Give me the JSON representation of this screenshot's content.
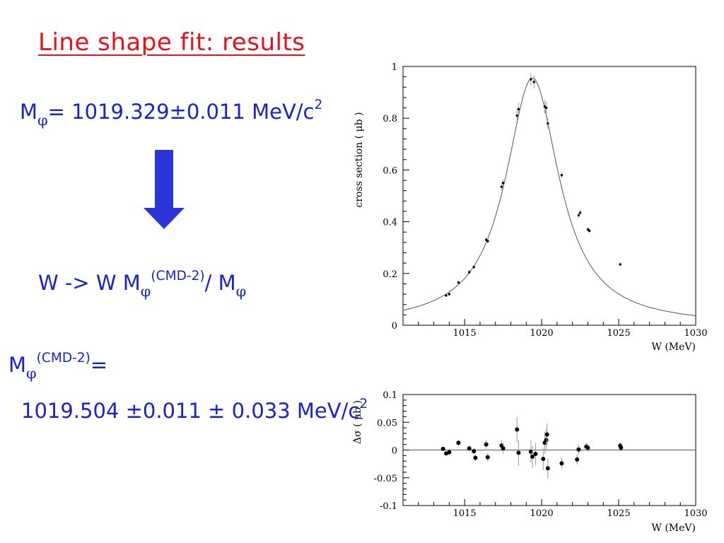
{
  "slide": {
    "title": "Line shape fit: results",
    "mass_symbol": "M",
    "phi_symbol": "φ",
    "mass_value": "= 1019.329±0.011 MeV/c",
    "power": "2",
    "rescale_left": "W -> W M",
    "cmd2_label": "(CMD-2)",
    "slash": "/ M",
    "cmd2_assign": "=",
    "cmd2_value": "1019.504 ±0.011 ± 0.033 MeV/c",
    "accent_color": "#1a22c9",
    "title_color": "#e8121b",
    "arrow_icon": "down-arrow"
  },
  "chart_data": [
    {
      "type": "scatter",
      "xlabel": "W (MeV)",
      "ylabel": "cross section ( μb )",
      "xlim": [
        1011,
        1030
      ],
      "ylim": [
        0,
        1
      ],
      "xticks": [
        1015,
        1020,
        1025,
        1030
      ],
      "yticks": [
        0,
        0.2,
        0.4,
        0.6,
        0.8,
        1
      ],
      "ytick_labels": [
        "0",
        "0.2",
        "0.4",
        "0.6",
        "0.8",
        "1"
      ],
      "series": [
        {
          "kind": "points",
          "x": [
            1013.8,
            1014.0,
            1014.6,
            1015.3,
            1015.6,
            1016.4,
            1016.5,
            1017.4,
            1017.5,
            1018.4,
            1018.5,
            1019.3,
            1019.5,
            1020.2,
            1020.3,
            1020.4,
            1021.3,
            1022.4,
            1022.5,
            1023.0,
            1023.1,
            1025.1
          ],
          "y": [
            0.115,
            0.12,
            0.165,
            0.205,
            0.225,
            0.33,
            0.325,
            0.535,
            0.55,
            0.81,
            0.835,
            0.95,
            0.94,
            0.845,
            0.84,
            0.78,
            0.58,
            0.425,
            0.435,
            0.37,
            0.365,
            0.235
          ],
          "err": [
            0.006,
            0.006,
            0.007,
            0.008,
            0.008,
            0.01,
            0.01,
            0.015,
            0.015,
            0.025,
            0.025,
            0.025,
            0.025,
            0.025,
            0.025,
            0.02,
            0.012,
            0.01,
            0.01,
            0.008,
            0.008,
            0.007
          ]
        },
        {
          "kind": "fit",
          "peak_mass": 1019.4,
          "width": 4.26,
          "peak_value": 0.955
        }
      ]
    },
    {
      "type": "scatter",
      "xlabel": "W (MeV)",
      "ylabel": "Δσ ( μb )",
      "xlim": [
        1011,
        1030
      ],
      "ylim": [
        -0.1,
        0.1
      ],
      "xticks": [
        1015,
        1020,
        1025,
        1030
      ],
      "yticks": [
        -0.1,
        -0.05,
        0,
        0.05,
        0.1
      ],
      "ytick_labels": [
        "-0.1",
        "-0.05",
        "0",
        "0.05",
        "0.1"
      ],
      "zero_line": true,
      "series": [
        {
          "kind": "points",
          "x": [
            1013.6,
            1013.8,
            1014.0,
            1014.6,
            1015.3,
            1015.6,
            1015.7,
            1016.4,
            1016.5,
            1017.4,
            1017.5,
            1018.4,
            1018.5,
            1019.3,
            1019.4,
            1019.6,
            1020.1,
            1020.2,
            1020.3,
            1020.35,
            1020.4,
            1021.3,
            1022.3,
            1022.4,
            1022.9,
            1023.0,
            1025.1,
            1025.15
          ],
          "y": [
            0.002,
            -0.006,
            -0.004,
            0.013,
            0.003,
            -0.002,
            -0.014,
            0.01,
            -0.013,
            0.008,
            0.003,
            0.037,
            -0.005,
            -0.003,
            -0.012,
            -0.007,
            -0.016,
            0.013,
            0.018,
            0.028,
            -0.033,
            -0.024,
            -0.017,
            0.001,
            0.006,
            0.004,
            0.008,
            0.004
          ],
          "err": [
            0.004,
            0.004,
            0.004,
            0.005,
            0.005,
            0.005,
            0.006,
            0.008,
            0.008,
            0.01,
            0.01,
            0.023,
            0.023,
            0.02,
            0.02,
            0.02,
            0.02,
            0.02,
            0.02,
            0.02,
            0.018,
            0.01,
            0.009,
            0.009,
            0.007,
            0.007,
            0.006,
            0.006
          ]
        }
      ]
    }
  ]
}
